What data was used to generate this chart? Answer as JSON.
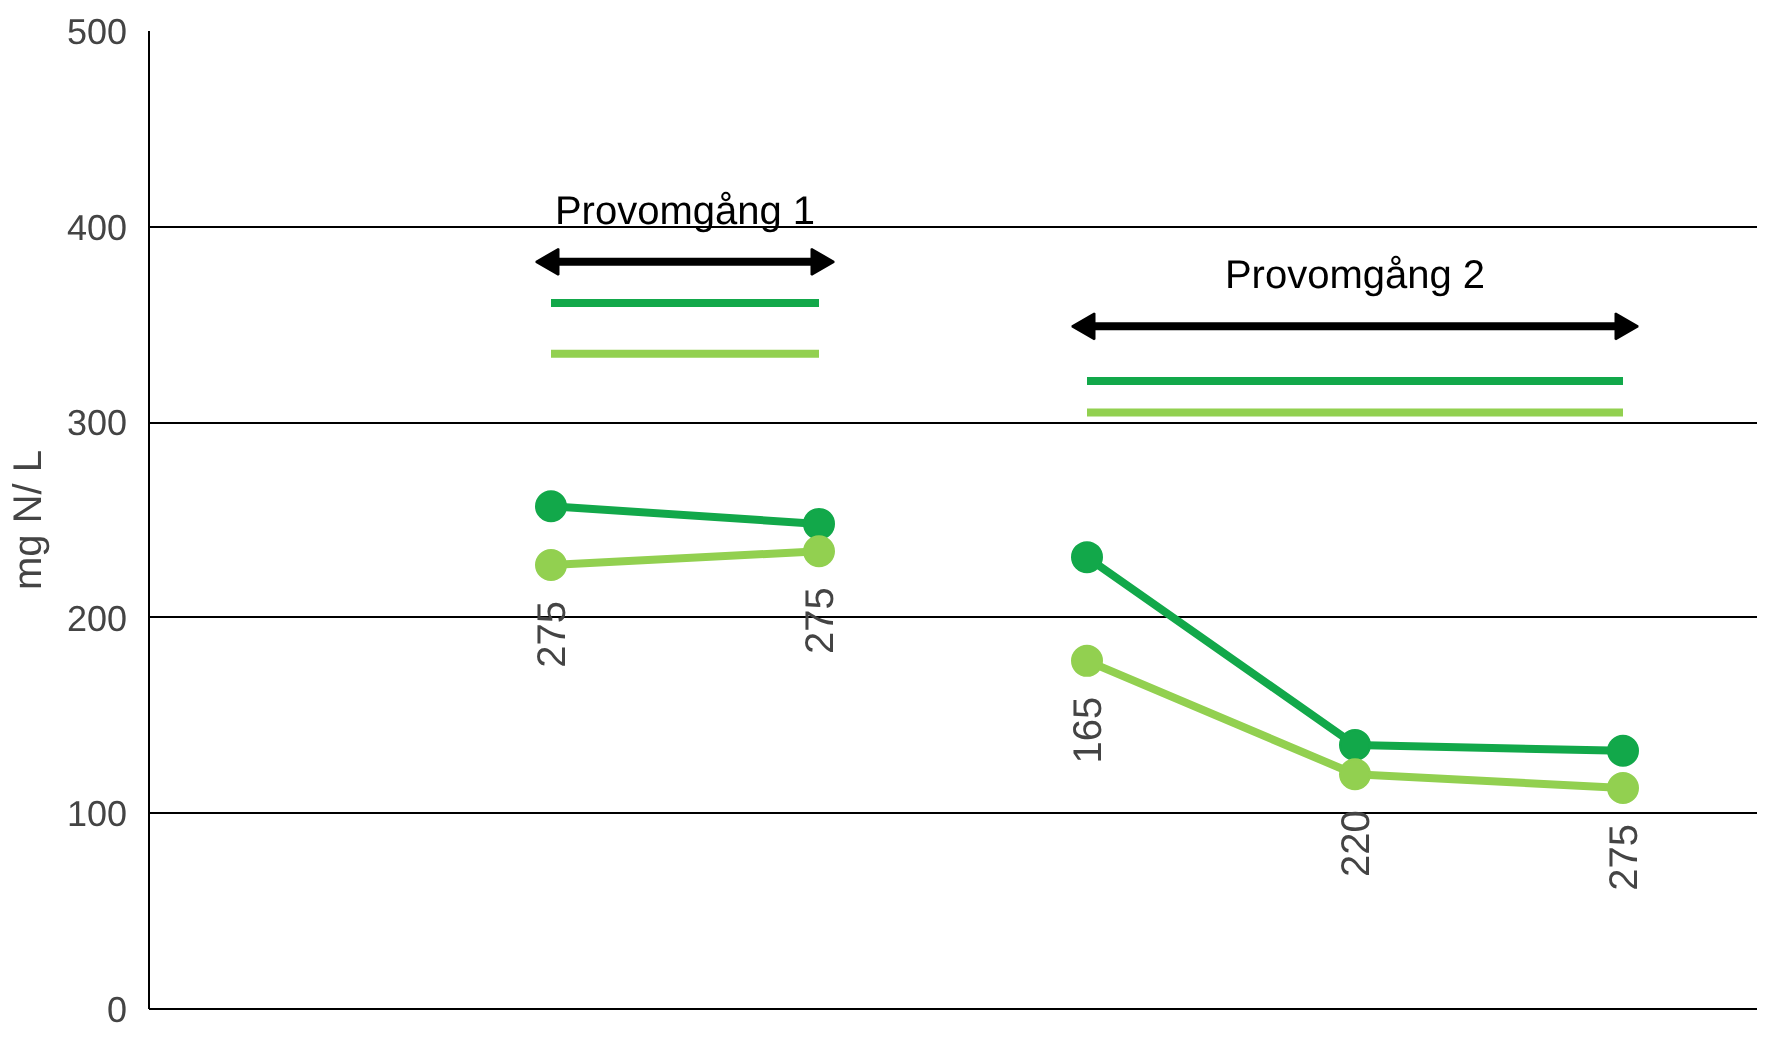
{
  "chart_data": {
    "type": "line",
    "ylabel": "mg N/ L",
    "categories": [
      null,
      "275",
      "275",
      "165",
      "220",
      "275"
    ],
    "ylim": [
      0,
      500
    ],
    "yticks": [
      0,
      100,
      200,
      300,
      400,
      500
    ],
    "grid": "y",
    "marker": "circle",
    "series": [
      {
        "color": "#12a84a",
        "values": [
          null,
          257,
          248,
          null,
          null,
          null
        ]
      },
      {
        "color": "#92d050",
        "values": [
          null,
          227,
          234,
          null,
          null,
          null
        ]
      },
      {
        "color": "#12a84a",
        "values": [
          null,
          null,
          null,
          231,
          135,
          132
        ]
      },
      {
        "color": "#92d050",
        "values": [
          null,
          null,
          null,
          178,
          120,
          113
        ]
      },
      {
        "marker": "none",
        "color": "#12a84a",
        "values": [
          null,
          361,
          361,
          null,
          null,
          null
        ]
      },
      {
        "marker": "none",
        "color": "#92d050",
        "values": [
          null,
          335,
          335,
          null,
          null,
          null
        ]
      },
      {
        "marker": "none",
        "color": "#12a84a",
        "values": [
          null,
          null,
          null,
          321,
          321,
          321
        ]
      },
      {
        "marker": "none",
        "color": "#92d050",
        "values": [
          null,
          null,
          null,
          305,
          305,
          305
        ]
      },
      {
        "name": "Provomgång 1",
        "marker": "triangle",
        "color": "#000000",
        "values": [
          null,
          382,
          382,
          null,
          null,
          null
        ]
      },
      {
        "name": "Provomgång 2",
        "marker": "triangle",
        "color": "#000000",
        "values": [
          null,
          null,
          null,
          349,
          349,
          349
        ]
      }
    ]
  }
}
